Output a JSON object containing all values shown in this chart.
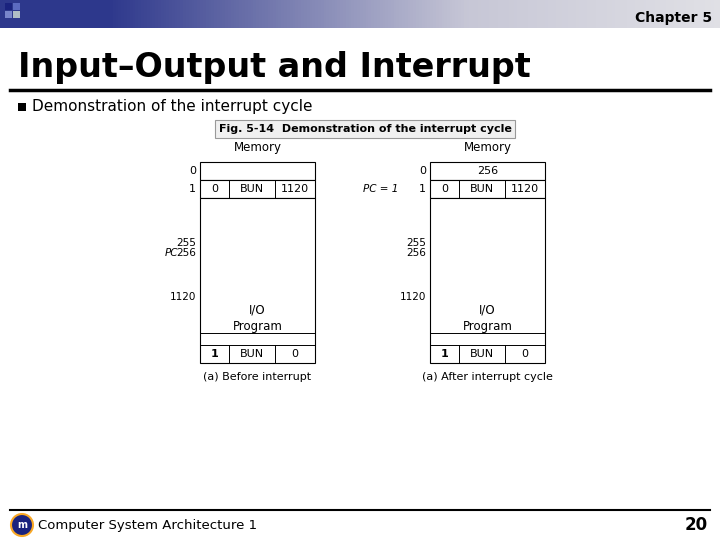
{
  "title": "Input–Output and Interrupt",
  "chapter": "Chapter 5",
  "bullet": "Demonstration of the interrupt cycle",
  "fig_title": "Fig. 5-14  Demonstration of the interrupt cycle",
  "slide_bg": "#ffffff",
  "footer_text": "Computer System Architecture 1",
  "footer_page": "20",
  "diagram": {
    "left": {
      "title": "Memory",
      "caption": "(a) Before interrupt",
      "row0_label": "0",
      "row1_label": "1",
      "row1_cells": [
        "0",
        "BUN",
        "1120"
      ],
      "pc_label": "PC",
      "mid_labels": [
        "255",
        "256"
      ],
      "bottom_label": "1120",
      "io_text": "I/O\nProgram",
      "bottom_cells": [
        "1",
        "BUN",
        "0"
      ]
    },
    "right": {
      "title": "Memory",
      "caption": "(a) After interrupt cycle",
      "row0_label": "0",
      "row0_cell": "256",
      "row1_label": "1",
      "pc_label": "PC = 1",
      "row1_cells": [
        "0",
        "BUN",
        "1120"
      ],
      "mid_labels": [
        "255",
        "256"
      ],
      "bottom_label": "1120",
      "io_text": "I/O\nProgram",
      "bottom_cells": [
        "1",
        "BUN",
        "0"
      ]
    }
  }
}
